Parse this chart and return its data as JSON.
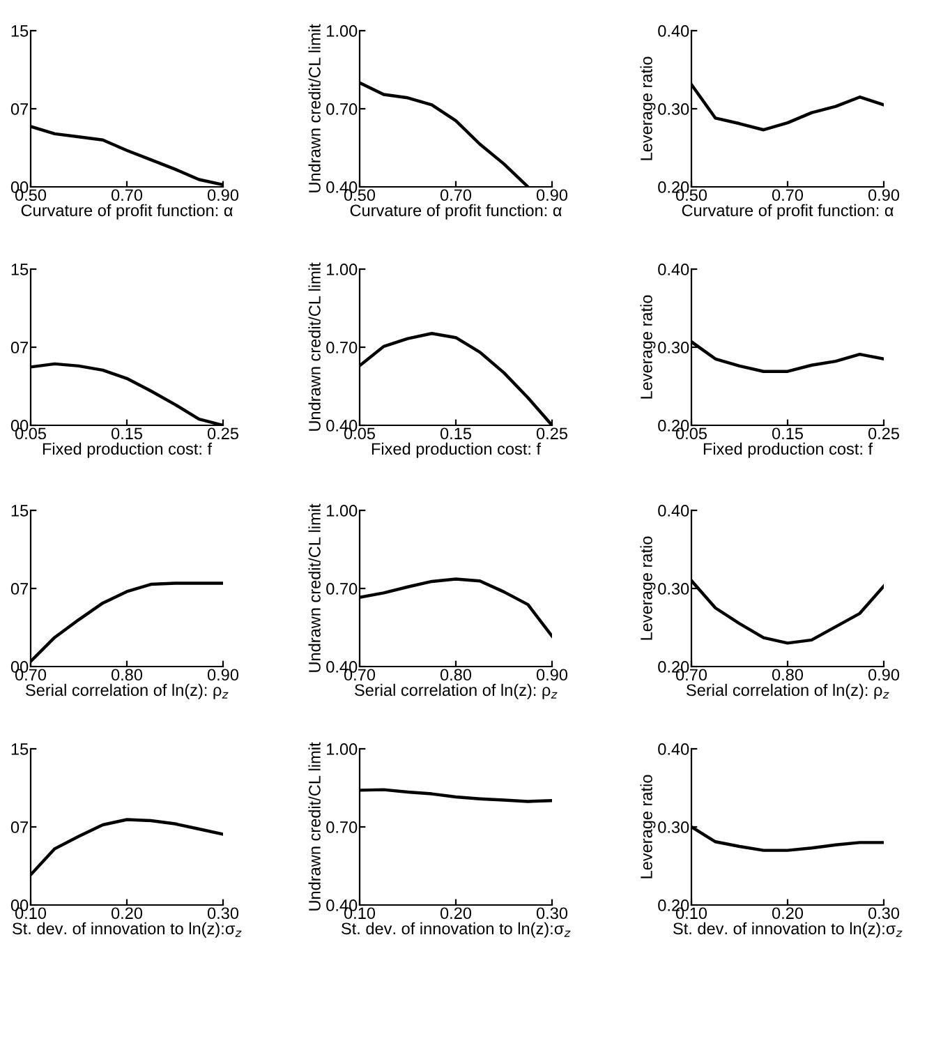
{
  "chart_data": [
    {
      "type": "line",
      "xlabel": "Curvature of profit function: α",
      "x": [
        0.5,
        0.55,
        0.6,
        0.65,
        0.7,
        0.75,
        0.8,
        0.85,
        0.9
      ],
      "series": [
        {
          "color": "#000000",
          "values": [
            5.8,
            5.1,
            4.8,
            4.5,
            3.5,
            2.6,
            1.7,
            0.7,
            0.2
          ]
        }
      ],
      "xlim": [
        0.5,
        0.9
      ],
      "xticks": [
        {
          "value": 0.5,
          "label": "0.50"
        },
        {
          "value": 0.7,
          "label": "0.70"
        },
        {
          "value": 0.9,
          "label": "0.90"
        }
      ],
      "ylim": [
        0,
        15
      ],
      "yticks": [
        {
          "value": 0,
          "label": "00"
        },
        {
          "value": 7.5,
          "label": "07"
        },
        {
          "value": 15,
          "label": "15"
        }
      ],
      "grid": false,
      "legend": false
    },
    {
      "type": "line",
      "xlabel": "Curvature of profit function: α",
      "ylabel": "Undrawn credit/CL limit",
      "x": [
        0.5,
        0.55,
        0.6,
        0.65,
        0.7,
        0.75,
        0.8,
        0.85
      ],
      "series": [
        {
          "color": "#000000",
          "values": [
            0.8,
            0.755,
            0.742,
            0.715,
            0.654,
            0.564,
            0.488,
            0.4
          ]
        }
      ],
      "xlim": [
        0.5,
        0.9
      ],
      "xticks": [
        {
          "value": 0.5,
          "label": "0.50"
        },
        {
          "value": 0.7,
          "label": "0.70"
        },
        {
          "value": 0.9,
          "label": "0.90"
        }
      ],
      "ylim": [
        0.4,
        1.0
      ],
      "yticks": [
        {
          "value": 0.4,
          "label": "0.40"
        },
        {
          "value": 0.7,
          "label": "0.70"
        },
        {
          "value": 1.0,
          "label": "1.00"
        }
      ],
      "grid": false,
      "legend": false
    },
    {
      "type": "line",
      "xlabel": "Curvature of profit function: α",
      "ylabel": "Leverage ratio",
      "x": [
        0.5,
        0.55,
        0.6,
        0.65,
        0.7,
        0.75,
        0.8,
        0.85,
        0.9
      ],
      "series": [
        {
          "color": "#000000",
          "values": [
            0.331,
            0.288,
            0.281,
            0.273,
            0.282,
            0.295,
            0.303,
            0.315,
            0.305
          ]
        }
      ],
      "xlim": [
        0.5,
        0.9
      ],
      "xticks": [
        {
          "value": 0.5,
          "label": "0.50"
        },
        {
          "value": 0.7,
          "label": "0.70"
        },
        {
          "value": 0.9,
          "label": "0.90"
        }
      ],
      "ylim": [
        0.2,
        0.4
      ],
      "yticks": [
        {
          "value": 0.2,
          "label": "0.20"
        },
        {
          "value": 0.3,
          "label": "0.30"
        },
        {
          "value": 0.4,
          "label": "0.40"
        }
      ],
      "grid": false,
      "legend": false
    },
    {
      "type": "line",
      "xlabel": "Fixed production cost: f",
      "x": [
        0.05,
        0.075,
        0.1,
        0.125,
        0.15,
        0.175,
        0.2,
        0.225,
        0.25
      ],
      "series": [
        {
          "color": "#000000",
          "values": [
            5.6,
            5.9,
            5.7,
            5.3,
            4.5,
            3.3,
            2.0,
            0.6,
            0.0
          ]
        }
      ],
      "xlim": [
        0.05,
        0.25
      ],
      "xticks": [
        {
          "value": 0.05,
          "label": "0.05"
        },
        {
          "value": 0.15,
          "label": "0.15"
        },
        {
          "value": 0.25,
          "label": "0.25"
        }
      ],
      "ylim": [
        0,
        15
      ],
      "yticks": [
        {
          "value": 0,
          "label": "00"
        },
        {
          "value": 7.5,
          "label": "07"
        },
        {
          "value": 15,
          "label": "15"
        }
      ],
      "grid": false,
      "legend": false
    },
    {
      "type": "line",
      "xlabel": "Fixed production cost: f",
      "ylabel": "Undrawn credit/CL limit",
      "x": [
        0.05,
        0.075,
        0.1,
        0.125,
        0.15,
        0.175,
        0.2,
        0.225,
        0.25
      ],
      "series": [
        {
          "color": "#000000",
          "values": [
            0.629,
            0.703,
            0.733,
            0.753,
            0.737,
            0.681,
            0.602,
            0.506,
            0.4
          ]
        }
      ],
      "xlim": [
        0.05,
        0.25
      ],
      "xticks": [
        {
          "value": 0.05,
          "label": "0.05"
        },
        {
          "value": 0.15,
          "label": "0.15"
        },
        {
          "value": 0.25,
          "label": "0.25"
        }
      ],
      "ylim": [
        0.4,
        1.0
      ],
      "yticks": [
        {
          "value": 0.4,
          "label": "0.40"
        },
        {
          "value": 0.7,
          "label": "0.70"
        },
        {
          "value": 1.0,
          "label": "1.00"
        }
      ],
      "grid": false,
      "legend": false
    },
    {
      "type": "line",
      "xlabel": "Fixed production cost: f",
      "ylabel": "Leverage ratio",
      "x": [
        0.05,
        0.075,
        0.1,
        0.125,
        0.15,
        0.175,
        0.2,
        0.225,
        0.25
      ],
      "series": [
        {
          "color": "#000000",
          "values": [
            0.307,
            0.285,
            0.276,
            0.269,
            0.269,
            0.277,
            0.282,
            0.291,
            0.285
          ]
        }
      ],
      "xlim": [
        0.05,
        0.25
      ],
      "xticks": [
        {
          "value": 0.05,
          "label": "0.05"
        },
        {
          "value": 0.15,
          "label": "0.15"
        },
        {
          "value": 0.25,
          "label": "0.25"
        }
      ],
      "ylim": [
        0.2,
        0.4
      ],
      "yticks": [
        {
          "value": 0.2,
          "label": "0.20"
        },
        {
          "value": 0.3,
          "label": "0.30"
        },
        {
          "value": 0.4,
          "label": "0.40"
        }
      ],
      "grid": false,
      "legend": false
    },
    {
      "type": "line",
      "xlabel": "Serial correlation of ln(z): ρ$_{z}$",
      "x": [
        0.7,
        0.725,
        0.75,
        0.775,
        0.8,
        0.825,
        0.85,
        0.875,
        0.9
      ],
      "series": [
        {
          "color": "#000000",
          "values": [
            0.5,
            2.8,
            4.5,
            6.1,
            7.2,
            7.9,
            8.0,
            8.0,
            8.0
          ]
        }
      ],
      "xlim": [
        0.7,
        0.9
      ],
      "xticks": [
        {
          "value": 0.7,
          "label": "0.70"
        },
        {
          "value": 0.8,
          "label": "0.80"
        },
        {
          "value": 0.9,
          "label": "0.90"
        }
      ],
      "ylim": [
        0,
        15
      ],
      "yticks": [
        {
          "value": 0,
          "label": "00"
        },
        {
          "value": 7.5,
          "label": "07"
        },
        {
          "value": 15,
          "label": "15"
        }
      ],
      "grid": false,
      "legend": false
    },
    {
      "type": "line",
      "xlabel": "Serial correlation of ln(z): ρ$_{z}$",
      "ylabel": "Undrawn credit/CL limit",
      "x": [
        0.7,
        0.725,
        0.75,
        0.775,
        0.8,
        0.825,
        0.85,
        0.875,
        0.9
      ],
      "series": [
        {
          "color": "#000000",
          "values": [
            0.666,
            0.683,
            0.706,
            0.727,
            0.736,
            0.729,
            0.687,
            0.638,
            0.517
          ]
        }
      ],
      "xlim": [
        0.7,
        0.9
      ],
      "xticks": [
        {
          "value": 0.7,
          "label": "0.70"
        },
        {
          "value": 0.8,
          "label": "0.80"
        },
        {
          "value": 0.9,
          "label": "0.90"
        }
      ],
      "ylim": [
        0.4,
        1.0
      ],
      "yticks": [
        {
          "value": 0.4,
          "label": "0.40"
        },
        {
          "value": 0.7,
          "label": "0.70"
        },
        {
          "value": 1.0,
          "label": "1.00"
        }
      ],
      "grid": false,
      "legend": false
    },
    {
      "type": "line",
      "xlabel": "Serial correlation of ln(z): ρ$_{z}$",
      "ylabel": "Leverage ratio",
      "x": [
        0.7,
        0.725,
        0.75,
        0.775,
        0.8,
        0.825,
        0.85,
        0.875,
        0.9
      ],
      "series": [
        {
          "color": "#000000",
          "values": [
            0.31,
            0.275,
            0.255,
            0.237,
            0.23,
            0.234,
            0.251,
            0.268,
            0.303
          ]
        }
      ],
      "xlim": [
        0.7,
        0.9
      ],
      "xticks": [
        {
          "value": 0.7,
          "label": "0.70"
        },
        {
          "value": 0.8,
          "label": "0.80"
        },
        {
          "value": 0.9,
          "label": "0.90"
        }
      ],
      "ylim": [
        0.2,
        0.4
      ],
      "yticks": [
        {
          "value": 0.2,
          "label": "0.20"
        },
        {
          "value": 0.3,
          "label": "0.30"
        },
        {
          "value": 0.4,
          "label": "0.40"
        }
      ],
      "grid": false,
      "legend": false
    },
    {
      "type": "line",
      "xlabel": "St. dev. of innovation to ln(z):σ$_{z}$",
      "x": [
        0.1,
        0.125,
        0.15,
        0.175,
        0.2,
        0.225,
        0.25,
        0.275,
        0.3
      ],
      "series": [
        {
          "color": "#000000",
          "values": [
            2.9,
            5.4,
            6.6,
            7.7,
            8.2,
            8.1,
            7.8,
            7.3,
            6.8
          ]
        }
      ],
      "xlim": [
        0.1,
        0.3
      ],
      "xticks": [
        {
          "value": 0.1,
          "label": "0.10"
        },
        {
          "value": 0.2,
          "label": "0.20"
        },
        {
          "value": 0.3,
          "label": "0.30"
        }
      ],
      "ylim": [
        0,
        15
      ],
      "yticks": [
        {
          "value": 0,
          "label": "00"
        },
        {
          "value": 7.5,
          "label": "07"
        },
        {
          "value": 15,
          "label": "15"
        }
      ],
      "grid": false,
      "legend": false
    },
    {
      "type": "line",
      "xlabel": "St. dev. of innovation to ln(z):σ$_{z}$",
      "ylabel": "Undrawn credit/CL limit",
      "x": [
        0.1,
        0.125,
        0.15,
        0.175,
        0.2,
        0.225,
        0.25,
        0.275,
        0.3
      ],
      "series": [
        {
          "color": "#000000",
          "values": [
            0.841,
            0.843,
            0.834,
            0.827,
            0.815,
            0.808,
            0.803,
            0.798,
            0.801
          ]
        }
      ],
      "xlim": [
        0.1,
        0.3
      ],
      "xticks": [
        {
          "value": 0.1,
          "label": "0.10"
        },
        {
          "value": 0.2,
          "label": "0.20"
        },
        {
          "value": 0.3,
          "label": "0.30"
        }
      ],
      "ylim": [
        0.4,
        1.0
      ],
      "yticks": [
        {
          "value": 0.4,
          "label": "0.40"
        },
        {
          "value": 0.7,
          "label": "0.70"
        },
        {
          "value": 1.0,
          "label": "1.00"
        }
      ],
      "grid": false,
      "legend": false
    },
    {
      "type": "line",
      "xlabel": "St. dev. of innovation to ln(z):σ$_{z}$",
      "ylabel": "Leverage ratio",
      "x": [
        0.1,
        0.125,
        0.15,
        0.175,
        0.2,
        0.225,
        0.25,
        0.275,
        0.3
      ],
      "series": [
        {
          "color": "#000000",
          "values": [
            0.3,
            0.281,
            0.275,
            0.27,
            0.27,
            0.273,
            0.277,
            0.28,
            0.28
          ]
        }
      ],
      "xlim": [
        0.1,
        0.3
      ],
      "xticks": [
        {
          "value": 0.1,
          "label": "0.10"
        },
        {
          "value": 0.2,
          "label": "0.20"
        },
        {
          "value": 0.3,
          "label": "0.30"
        }
      ],
      "ylim": [
        0.2,
        0.4
      ],
      "yticks": [
        {
          "value": 0.2,
          "label": "0.20"
        },
        {
          "value": 0.3,
          "label": "0.30"
        },
        {
          "value": 0.4,
          "label": "0.40"
        }
      ],
      "grid": false,
      "legend": false
    }
  ]
}
